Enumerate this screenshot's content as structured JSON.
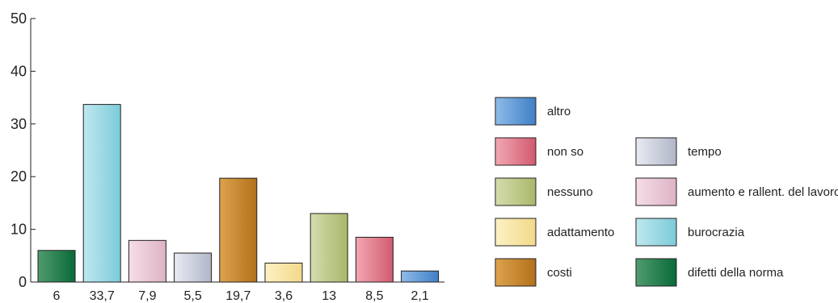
{
  "chart_data": {
    "type": "bar",
    "title": "",
    "xlabel": "",
    "ylabel": "",
    "ylim": [
      0,
      50
    ],
    "yticks": [
      0,
      10,
      20,
      30,
      40,
      50
    ],
    "categories": [
      "6",
      "33,7",
      "7,9",
      "5,5",
      "19,7",
      "3,6",
      "13",
      "8,5",
      "2,1"
    ],
    "values": [
      6,
      33.7,
      7.9,
      5.5,
      19.7,
      3.6,
      13,
      8.5,
      2.1
    ],
    "bar_series": [
      "difetti della norma",
      "burocrazia",
      "aumento e rallent. del lavoro",
      "tempo",
      "costi",
      "adattamento",
      "nessuno",
      "non so",
      "altro"
    ],
    "legend": [
      {
        "label": "altro",
        "color": "#8fbbe8",
        "dark": "#3f7fc6"
      },
      {
        "label": "non so",
        "color": "#f2a8b3",
        "dark": "#d15a6e"
      },
      {
        "label": "tempo",
        "color": "#e8ebf2",
        "dark": "#b0b6c8"
      },
      {
        "label": "nessuno",
        "color": "#d4dcae",
        "dark": "#a9b86a"
      },
      {
        "label": "aumento e rallent. del lavoro",
        "color": "#f6dde7",
        "dark": "#ddb3c5"
      },
      {
        "label": "adattamento",
        "color": "#fdf1c4",
        "dark": "#f2d98a"
      },
      {
        "label": "burocrazia",
        "color": "#bfe8ef",
        "dark": "#7ccbd9"
      },
      {
        "label": "costi",
        "color": "#dea34d",
        "dark": "#b2701a"
      },
      {
        "label": "difetti della norma",
        "color": "#4f9b6e",
        "dark": "#0a6a3a"
      }
    ],
    "legend_position": "right",
    "grid": false
  }
}
